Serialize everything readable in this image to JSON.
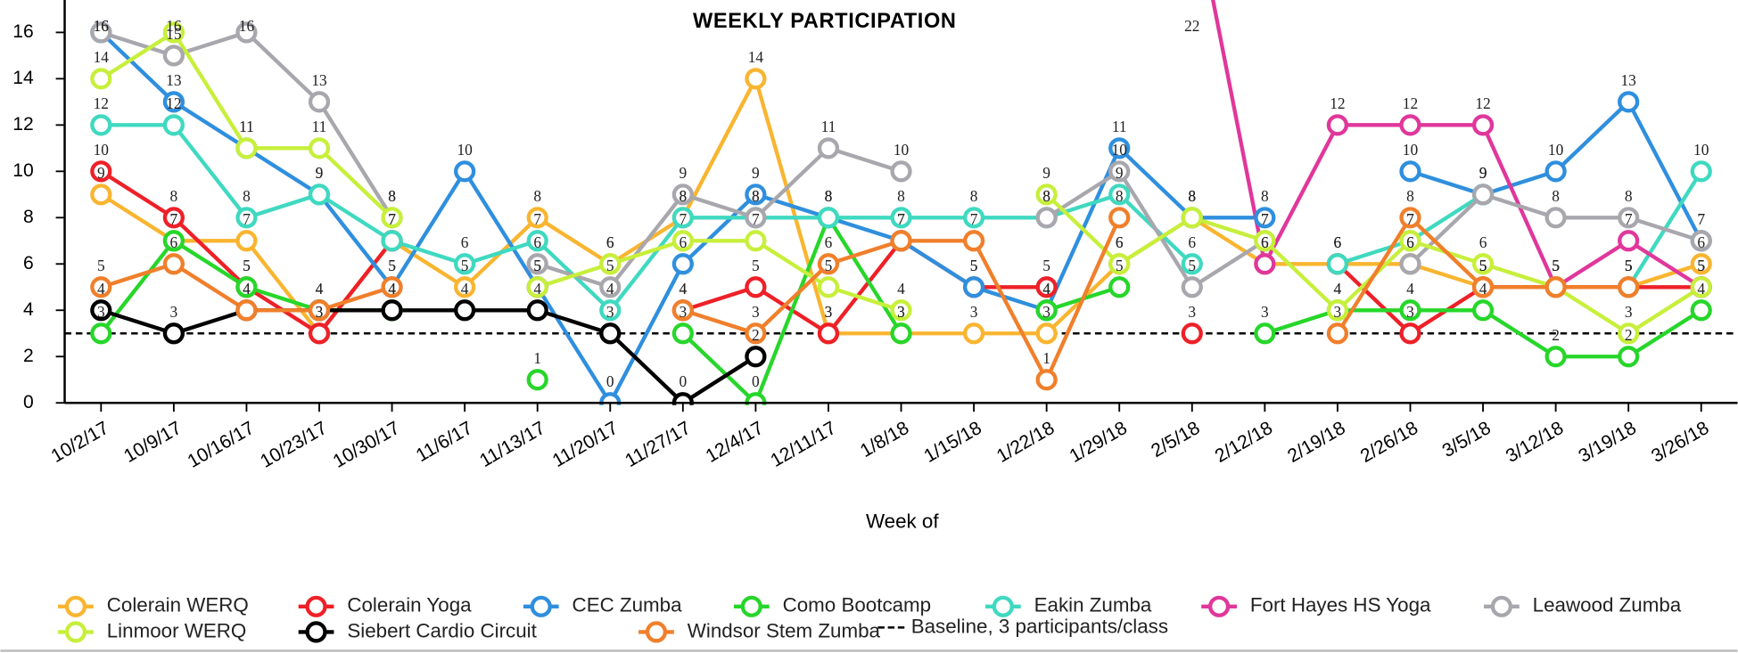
{
  "chart_data": {
    "type": "line",
    "title": "WEEKLY PARTICIPATION",
    "x_label": "Week of",
    "categories": [
      "10/2/17",
      "10/9/17",
      "10/16/17",
      "10/23/17",
      "10/30/17",
      "11/6/17",
      "11/13/17",
      "11/20/17",
      "11/27/17",
      "12/4/17",
      "12/11/17",
      "1/8/18",
      "1/15/18",
      "1/22/18",
      "1/29/18",
      "2/5/18",
      "2/12/18",
      "2/19/18",
      "2/26/18",
      "3/5/18",
      "3/12/18",
      "3/19/18",
      "3/26/18"
    ],
    "ylim": [
      0,
      17.4
    ],
    "yticks": [
      0,
      2,
      4,
      6,
      8,
      10,
      12,
      14,
      16
    ],
    "legend": "bottom",
    "series": [
      {
        "name": "Colerain WERQ",
        "color": "#f9b530",
        "values": [
          9,
          7,
          7,
          3,
          7,
          5,
          8,
          6,
          8,
          14,
          3,
          3,
          3,
          3,
          6,
          8,
          6,
          6,
          6,
          5,
          5,
          5,
          6
        ]
      },
      {
        "name": "Colerain Yoga",
        "color": "#ee2028",
        "values": [
          10,
          8,
          5,
          3,
          7,
          null,
          5,
          null,
          4,
          5,
          3,
          7,
          5,
          5,
          null,
          3,
          null,
          6,
          3,
          5,
          5,
          5,
          5
        ]
      },
      {
        "name": "CEC Zumba",
        "color": "#2f8fde",
        "values": [
          16,
          13,
          11,
          9,
          5,
          10,
          5,
          0,
          6,
          9,
          8,
          7,
          5,
          4,
          11,
          8,
          8,
          null,
          10,
          9,
          10,
          13,
          7
        ]
      },
      {
        "name": "Como Bootcamp",
        "color": "#27d62a",
        "values": [
          3,
          7,
          5,
          4,
          4,
          null,
          1,
          null,
          3,
          0,
          8,
          3,
          null,
          4,
          5,
          null,
          3,
          4,
          4,
          4,
          2,
          2,
          4
        ]
      },
      {
        "name": "Eakin Zumba",
        "color": "#3fd9c0",
        "values": [
          12,
          12,
          8,
          9,
          7,
          6,
          7,
          4,
          8,
          8,
          8,
          8,
          8,
          8,
          9,
          6,
          null,
          6,
          7,
          9,
          null,
          5,
          10
        ]
      },
      {
        "name": "Fort Hayes HS Yoga",
        "color": "#e0379b",
        "values": [
          null,
          null,
          null,
          null,
          null,
          null,
          null,
          null,
          null,
          null,
          null,
          null,
          null,
          null,
          null,
          22,
          6,
          12,
          12,
          12,
          5,
          7,
          5
        ]
      },
      {
        "name": "Leawood Zumba",
        "color": "#a8a7ad",
        "values": [
          16,
          15,
          16,
          13,
          8,
          null,
          6,
          5,
          9,
          8,
          11,
          10,
          null,
          8,
          10,
          5,
          7,
          null,
          6,
          9,
          8,
          8,
          7
        ]
      },
      {
        "name": "Linmoor WERQ",
        "color": "#c7ef3b",
        "values": [
          14,
          16,
          11,
          11,
          8,
          null,
          5,
          6,
          7,
          7,
          5,
          4,
          null,
          9,
          6,
          8,
          7,
          4,
          7,
          6,
          5,
          3,
          5
        ]
      },
      {
        "name": "Siebert Cardio Circuit",
        "color": "#000000",
        "values": [
          4,
          3,
          4,
          4,
          4,
          4,
          4,
          3,
          0,
          2,
          null,
          null,
          null,
          null,
          null,
          null,
          null,
          null,
          null,
          null,
          null,
          null,
          null
        ]
      },
      {
        "name": "Windsor Stem Zumba",
        "color": "#f07f2b",
        "values": [
          5,
          6,
          4,
          4,
          5,
          null,
          null,
          null,
          4,
          3,
          6,
          7,
          7,
          1,
          8,
          null,
          null,
          3,
          8,
          5,
          5,
          5,
          null
        ]
      }
    ],
    "baseline": {
      "name": "Baseline, 3 participants/class",
      "value": 3,
      "color": "#000000"
    }
  }
}
